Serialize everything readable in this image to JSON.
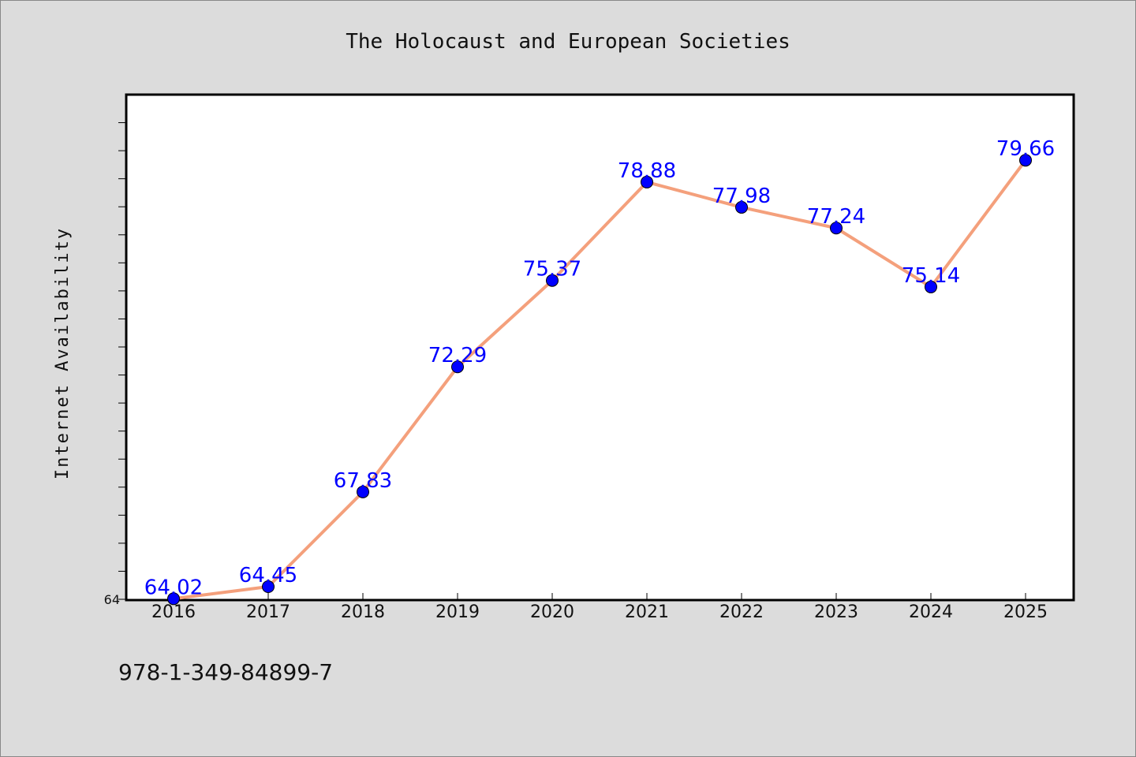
{
  "colors": {
    "background": "#dcdcdc",
    "plot_background": "#ffffff",
    "line": "#f4a07c",
    "marker": "#0000ff",
    "label": "#0000ff"
  },
  "footer": {
    "isbn": "978-1-349-84899-7"
  },
  "chart_data": {
    "type": "line",
    "title": "The Holocaust and European Societies",
    "xlabel": "",
    "ylabel": "Internet Availability",
    "categories": [
      "2016",
      "2017",
      "2018",
      "2019",
      "2020",
      "2021",
      "2022",
      "2023",
      "2024",
      "2025"
    ],
    "series": [
      {
        "values": [
          64.02,
          64.45,
          67.83,
          72.29,
          75.37,
          78.88,
          77.98,
          77.24,
          75.14,
          79.66
        ],
        "labels": [
          "64.02",
          "64.45",
          "67.83",
          "72.29",
          "75.37",
          "78.88",
          "77.98",
          "77.24",
          "75.14",
          "79.66"
        ]
      }
    ],
    "ylim": [
      64,
      82
    ],
    "ytick_labels": [
      "64"
    ],
    "grid": false,
    "legend": "none"
  }
}
